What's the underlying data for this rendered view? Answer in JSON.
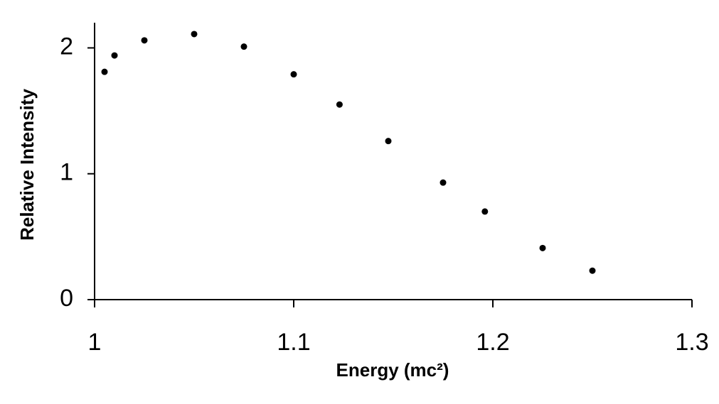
{
  "chart_data": {
    "type": "scatter",
    "x_label": "Energy (mc²)",
    "y_label": "Relative Intensity",
    "x": [
      1.005,
      1.01,
      1.025,
      1.05,
      1.075,
      1.1,
      1.123,
      1.1475,
      1.175,
      1.196,
      1.225,
      1.25
    ],
    "values": [
      1.81,
      1.94,
      2.06,
      2.11,
      2.01,
      1.79,
      1.55,
      1.26,
      0.93,
      0.7,
      0.41,
      0.23
    ],
    "color": "#000000",
    "xlim": [
      1,
      1.3
    ],
    "xticks": [
      1,
      1.1,
      1.2,
      1.3
    ],
    "ylim": [
      0,
      2.2
    ],
    "yticks": [
      0,
      1,
      2
    ]
  }
}
